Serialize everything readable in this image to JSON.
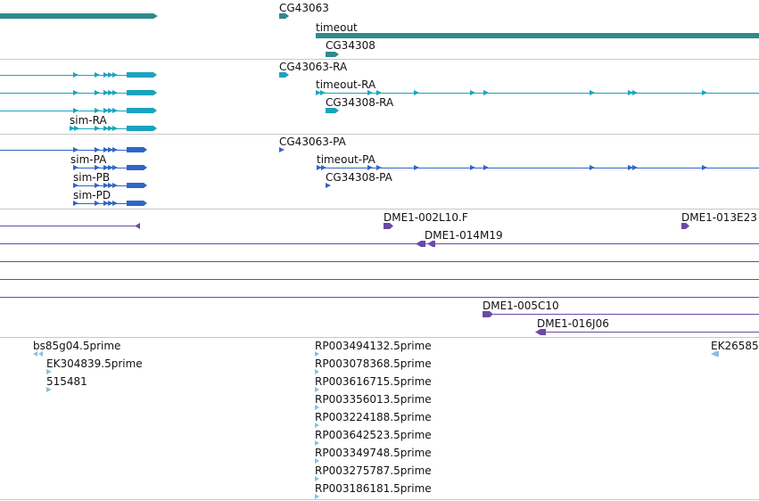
{
  "colors": {
    "gene": "#2f8a8c",
    "mrna": "#1aa3bd",
    "protein": "#2f66c6",
    "clone": "#6a4aa6",
    "est": "#8dbfdb",
    "separator": "#c8c8c8"
  },
  "genes": {
    "cg43063": "CG43063",
    "timeout": "timeout",
    "cg34308": "CG34308"
  },
  "mrnas": {
    "cg43063_ra": "CG43063-RA",
    "timeout_ra": "timeout-RA",
    "cg34308_ra": "CG34308-RA",
    "sim_ra": "sim-RA"
  },
  "proteins": {
    "cg43063_pa": "CG43063-PA",
    "sim_pa": "sim-PA",
    "sim_pb": "sim-PB",
    "sim_pd": "sim-PD",
    "timeout_pa": "timeout-PA",
    "cg34308_pa": "CG34308-PA"
  },
  "clones": {
    "dme1_002l10": "DME1-002L10.F",
    "dme1_013e23": "DME1-013E23",
    "dme1_014m19": "DME1-014M19",
    "dme1_005c10": "DME1-005C10",
    "dme1_016j06": "DME1-016J06"
  },
  "ests": {
    "bs85g04": "bs85g04.5prime",
    "ek304839": "EK304839.5prime",
    "e515481": "515481",
    "ek26585": "EK26585",
    "rp": [
      "RP003494132.5prime",
      "RP003078368.5prime",
      "RP003616715.5prime",
      "RP003356013.5prime",
      "RP003224188.5prime",
      "RP003642523.5prime",
      "RP003349748.5prime",
      "RP003275787.5prime",
      "RP003186181.5prime"
    ]
  }
}
